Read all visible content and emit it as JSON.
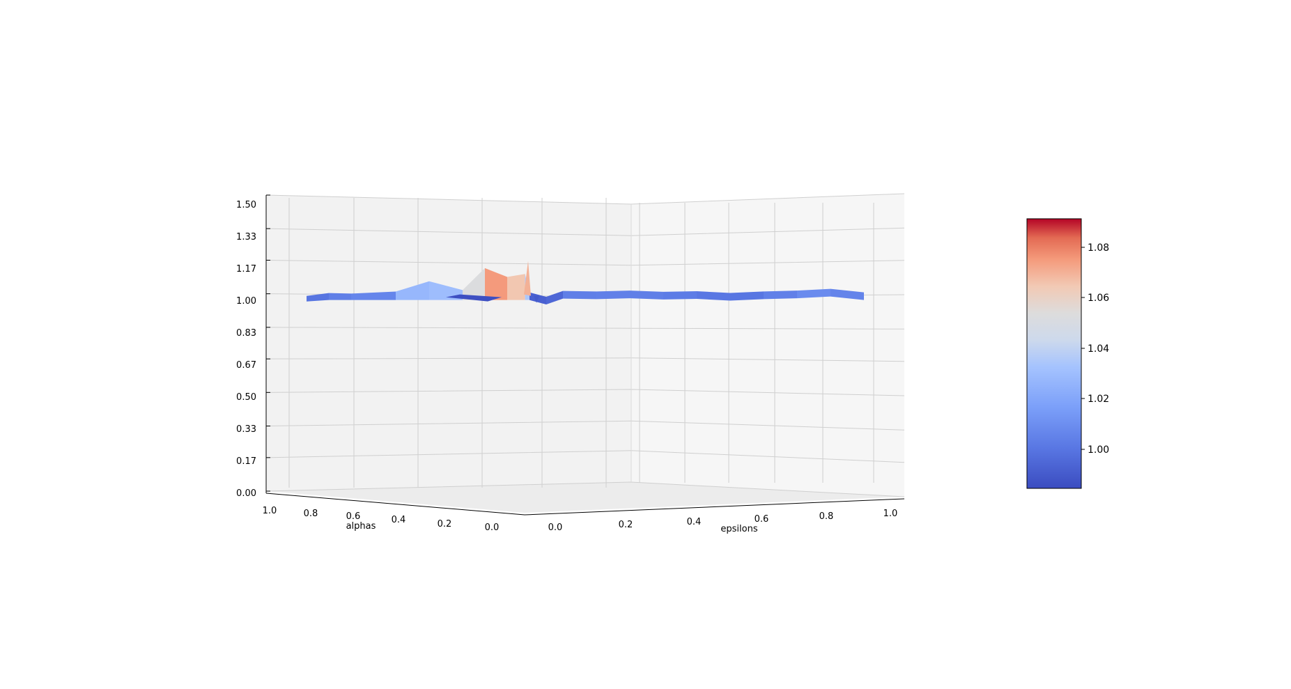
{
  "chart_data": {
    "type": "surface3d",
    "colormap": "coolwarm",
    "xlabel": "alphas",
    "ylabel": "epsilons",
    "zlabel": "",
    "xlim": [
      0,
      1
    ],
    "ylim": [
      0,
      1
    ],
    "zlim": [
      0,
      1.5
    ],
    "x_ticks": [
      "0.0",
      "0.2",
      "0.4",
      "0.6",
      "0.8",
      "1.0"
    ],
    "y_ticks": [
      "0.0",
      "0.2",
      "0.4",
      "0.6",
      "0.8",
      "1.0"
    ],
    "z_ticks": [
      "0.00",
      "0.17",
      "0.33",
      "0.50",
      "0.67",
      "0.83",
      "1.00",
      "1.17",
      "1.33",
      "1.50"
    ],
    "grid": true,
    "colorbar": {
      "range": [
        0.985,
        1.091
      ],
      "ticks": [
        "1.00",
        "1.02",
        "1.04",
        "1.06",
        "1.08"
      ],
      "tick_values": [
        1.0,
        1.02,
        1.04,
        1.06,
        1.08
      ]
    },
    "surface_alpha_edge": [
      {
        "x": 1.0,
        "z": 0.995
      },
      {
        "x": 0.9,
        "z": 1.005
      },
      {
        "x": 0.8,
        "z": 1.003
      },
      {
        "x": 0.6,
        "z": 1.01
      },
      {
        "x": 0.45,
        "z": 1.045
      },
      {
        "x": 0.3,
        "z": 1.015
      },
      {
        "x": 0.2,
        "z": 1.09
      },
      {
        "x": 0.1,
        "z": 1.06
      },
      {
        "x": 0.02,
        "z": 1.07
      },
      {
        "x": 0.0,
        "z": 1.0
      }
    ],
    "surface_epsilon_edge": [
      {
        "y": 0.0,
        "z": 1.0
      },
      {
        "y": 0.05,
        "z": 0.985
      },
      {
        "y": 0.1,
        "z": 1.005
      },
      {
        "y": 0.2,
        "z": 1.003
      },
      {
        "y": 0.3,
        "z": 1.006
      },
      {
        "y": 0.4,
        "z": 1.002
      },
      {
        "y": 0.5,
        "z": 1.004
      },
      {
        "y": 0.6,
        "z": 0.998
      },
      {
        "y": 0.7,
        "z": 1.003
      },
      {
        "y": 0.8,
        "z": 1.006
      },
      {
        "y": 0.9,
        "z": 1.012
      },
      {
        "y": 1.0,
        "z": 1.0
      }
    ]
  }
}
